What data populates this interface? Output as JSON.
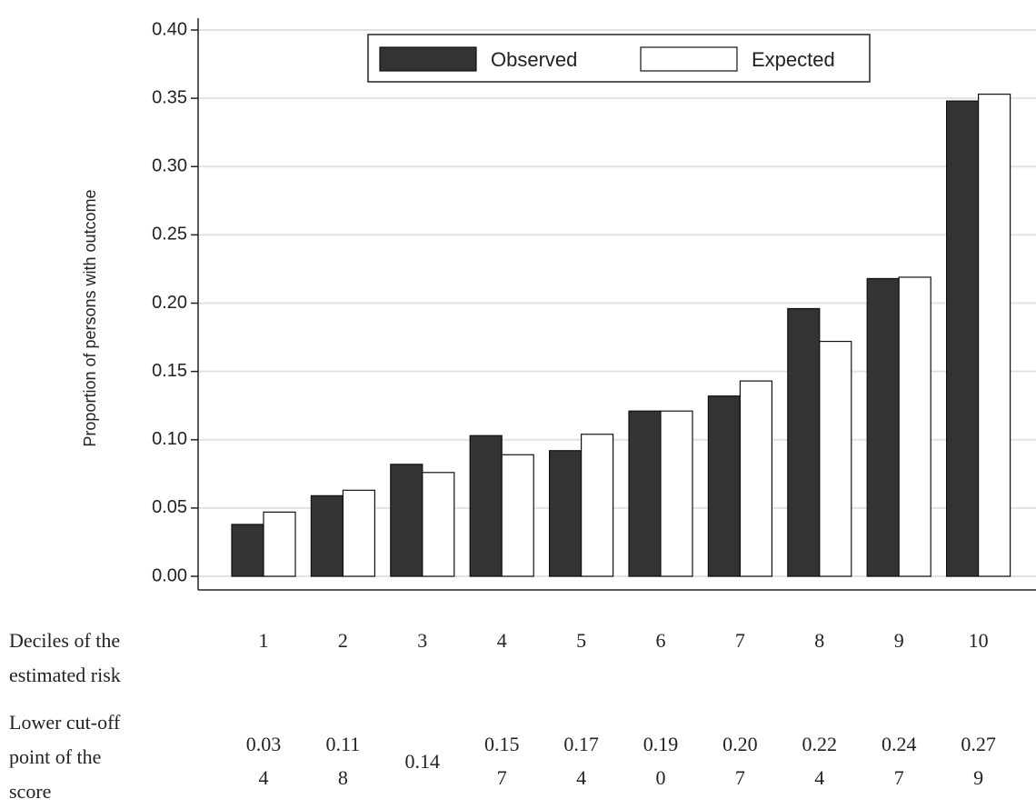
{
  "chart_data": {
    "type": "bar",
    "y_label": "Proportion of persons with outcome",
    "categories": [
      "1",
      "2",
      "3",
      "4",
      "5",
      "6",
      "7",
      "8",
      "9",
      "10"
    ],
    "series": [
      {
        "name": "Observed",
        "color": "#333333",
        "values": [
          0.038,
          0.059,
          0.082,
          0.103,
          0.092,
          0.121,
          0.132,
          0.196,
          0.218,
          0.348
        ]
      },
      {
        "name": "Expected",
        "color": "#ffffff",
        "values": [
          0.047,
          0.063,
          0.076,
          0.089,
          0.104,
          0.121,
          0.143,
          0.172,
          0.219,
          0.353
        ]
      }
    ],
    "ylim": [
      0,
      0.4
    ],
    "yticks": [
      {
        "value": 0,
        "label": "0.00"
      },
      {
        "value": 0.05,
        "label": "0.05"
      },
      {
        "value": 0.1,
        "label": "0.10"
      },
      {
        "value": 0.15,
        "label": "0.15"
      },
      {
        "value": 0.2,
        "label": "0.20"
      },
      {
        "value": 0.25,
        "label": "0.25"
      },
      {
        "value": 0.3,
        "label": "0.30"
      },
      {
        "value": 0.35,
        "label": "0.35"
      },
      {
        "value": 0.4,
        "label": "0.40"
      }
    ],
    "grid": true,
    "legend": "top"
  },
  "table": {
    "row_labels": [
      "Deciles of the estimated risk",
      "Lower cut-off point of the score"
    ],
    "cutoffs": [
      "0.034",
      "0.118",
      "0.14",
      "0.157",
      "0.174",
      "0.190",
      "0.207",
      "0.224",
      "0.247",
      "0.279"
    ]
  }
}
